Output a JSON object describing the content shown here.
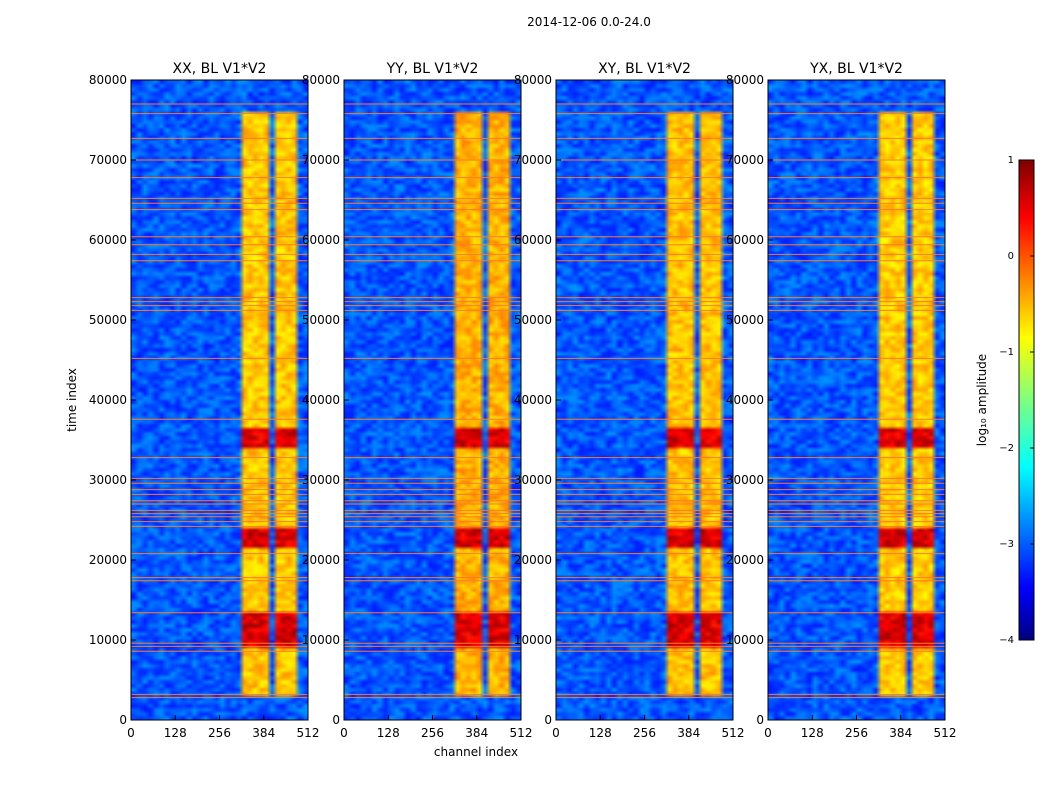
{
  "suptitle": "2014-12-06 0.0-24.0",
  "chart_data": {
    "type": "heatmap",
    "panels": [
      {
        "title": "XX, BL V1*V2",
        "band_strength": 0.8
      },
      {
        "title": "YY, BL V1*V2",
        "band_strength": 1.0
      },
      {
        "title": "XY, BL V1*V2",
        "band_strength": 0.85
      },
      {
        "title": "YX, BL V1*V2",
        "band_strength": 0.75
      }
    ],
    "xlabel": "channel index",
    "ylabel": "time index",
    "x_ticks": [
      "0",
      "128",
      "256",
      "384",
      "512"
    ],
    "x_tick_values": [
      0,
      128,
      256,
      384,
      512
    ],
    "y_ticks": [
      "0",
      "10000",
      "20000",
      "30000",
      "40000",
      "50000",
      "60000",
      "70000",
      "80000"
    ],
    "y_tick_values": [
      0,
      10000,
      20000,
      30000,
      40000,
      50000,
      60000,
      70000,
      80000
    ],
    "xlim": [
      0,
      512
    ],
    "ylim": [
      0,
      80000
    ],
    "colorbar": {
      "label": "log₁₀ amplitude",
      "ticks": [
        "1",
        "0",
        "−1",
        "−2",
        "−3",
        "−4"
      ],
      "tick_values": [
        1,
        0,
        -1,
        -2,
        -3,
        -4
      ],
      "range": [
        -4,
        1
      ],
      "colormap": "jet"
    },
    "signal_channels": [
      [
        325,
        365
      ],
      [
        370,
        405
      ],
      [
        410,
        440
      ],
      [
        445,
        480
      ]
    ],
    "signal_time_range": [
      3000,
      76000
    ],
    "bright_time_bands": [
      [
        9000,
        13500
      ],
      [
        21500,
        24000
      ],
      [
        34000,
        36500
      ]
    ],
    "flagged_time_rows": [
      2800,
      3200,
      8600,
      9200,
      9600,
      13400,
      17400,
      17800,
      20800,
      24200,
      24800,
      25400,
      25800,
      26200,
      27000,
      27400,
      28200,
      28800,
      29600,
      30200,
      32800,
      37600,
      45200,
      51200,
      51800,
      52300,
      52800,
      57400,
      58200,
      59400,
      60400,
      63800,
      64600,
      65200,
      67800,
      70000,
      72700,
      75800,
      77000
    ]
  }
}
